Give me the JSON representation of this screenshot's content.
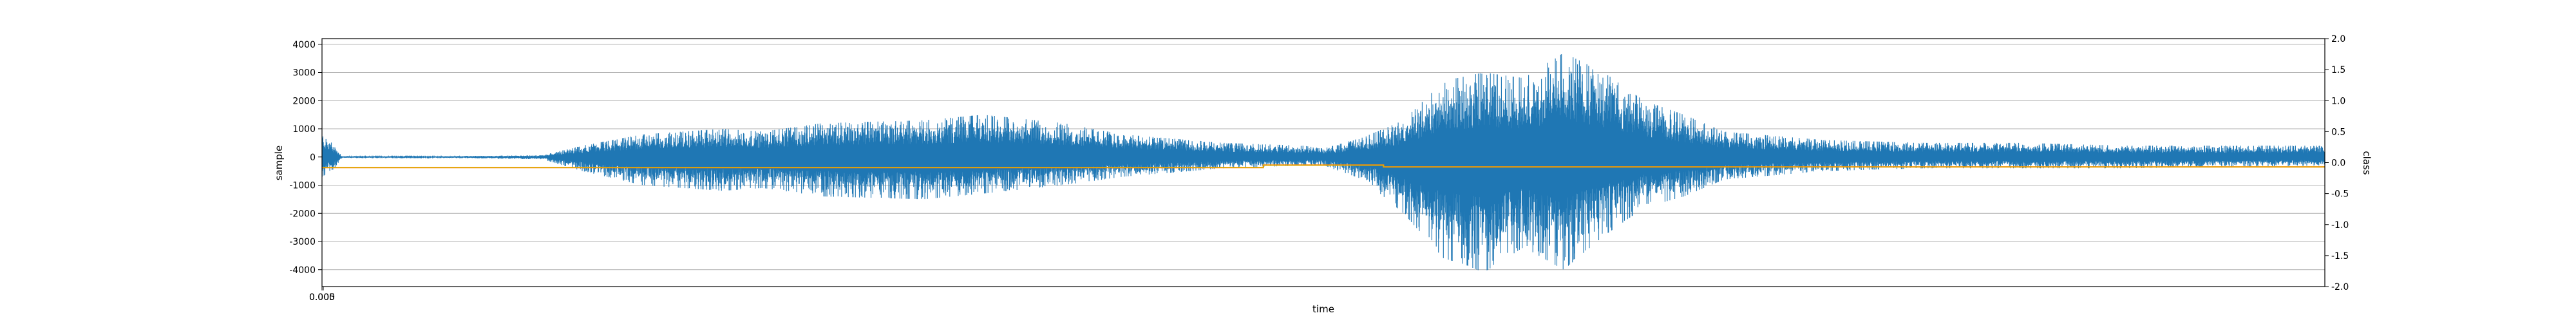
{
  "chart_data": {
    "type": "line",
    "xlabel": "time",
    "ylabel_left": "sample",
    "ylabel_right": "class",
    "x_tick_labels": [
      "0.000",
      "0.005"
    ],
    "ylim_left": [
      -4600,
      4200
    ],
    "ylim_right": [
      -2.0,
      2.0
    ],
    "yticks_left": [
      4000,
      3000,
      2000,
      1000,
      0,
      -1000,
      -2000,
      -3000,
      -4000
    ],
    "yticks_right": [
      2.0,
      1.5,
      1.0,
      0.5,
      0.0,
      -0.5,
      -1.0,
      -1.5,
      -2.0
    ],
    "grid": "horizontal",
    "colors": {
      "sample": "#1f77b4",
      "class": "#ff7f0e",
      "class_alt": "#d4b800"
    },
    "series": [
      {
        "axis": "left",
        "color": "#1f77b4",
        "envelope": [
          [
            0.0,
            800
          ],
          [
            0.005,
            500
          ],
          [
            0.01,
            30
          ],
          [
            0.05,
            20
          ],
          [
            0.11,
            60
          ],
          [
            0.13,
            400
          ],
          [
            0.16,
            800
          ],
          [
            0.2,
            1000
          ],
          [
            0.22,
            900
          ],
          [
            0.25,
            1200
          ],
          [
            0.3,
            1300
          ],
          [
            0.33,
            1500
          ],
          [
            0.37,
            1200
          ],
          [
            0.4,
            800
          ],
          [
            0.45,
            500
          ],
          [
            0.49,
            400
          ],
          [
            0.5,
            300
          ],
          [
            0.52,
            700
          ],
          [
            0.54,
            1300
          ],
          [
            0.56,
            2700
          ],
          [
            0.58,
            3000
          ],
          [
            0.6,
            2800
          ],
          [
            0.62,
            3700
          ],
          [
            0.64,
            3000
          ],
          [
            0.66,
            2000
          ],
          [
            0.68,
            1500
          ],
          [
            0.7,
            900
          ],
          [
            0.75,
            600
          ],
          [
            0.8,
            500
          ],
          [
            0.85,
            500
          ],
          [
            0.9,
            400
          ],
          [
            0.95,
            400
          ],
          [
            1.0,
            400
          ]
        ],
        "neg_envelope": [
          [
            0.0,
            700
          ],
          [
            0.005,
            500
          ],
          [
            0.01,
            30
          ],
          [
            0.05,
            20
          ],
          [
            0.11,
            80
          ],
          [
            0.13,
            500
          ],
          [
            0.16,
            1000
          ],
          [
            0.2,
            1200
          ],
          [
            0.22,
            1100
          ],
          [
            0.25,
            1400
          ],
          [
            0.3,
            1500
          ],
          [
            0.33,
            1300
          ],
          [
            0.37,
            1000
          ],
          [
            0.4,
            700
          ],
          [
            0.45,
            400
          ],
          [
            0.49,
            300
          ],
          [
            0.5,
            300
          ],
          [
            0.52,
            800
          ],
          [
            0.54,
            2000
          ],
          [
            0.56,
            3600
          ],
          [
            0.57,
            3800
          ],
          [
            0.58,
            4100
          ],
          [
            0.6,
            3200
          ],
          [
            0.62,
            4000
          ],
          [
            0.64,
            2800
          ],
          [
            0.66,
            1800
          ],
          [
            0.68,
            1400
          ],
          [
            0.7,
            800
          ],
          [
            0.75,
            500
          ],
          [
            0.8,
            400
          ],
          [
            0.85,
            400
          ],
          [
            0.9,
            400
          ],
          [
            0.95,
            350
          ],
          [
            1.0,
            300
          ]
        ]
      },
      {
        "axis": "right",
        "color": "#ff7f0e",
        "points": [
          [
            0.0,
            -0.08
          ],
          [
            0.47,
            -0.08
          ],
          [
            0.47,
            -0.04
          ],
          [
            0.53,
            -0.04
          ],
          [
            0.53,
            -0.07
          ],
          [
            1.0,
            -0.07
          ]
        ]
      }
    ]
  }
}
